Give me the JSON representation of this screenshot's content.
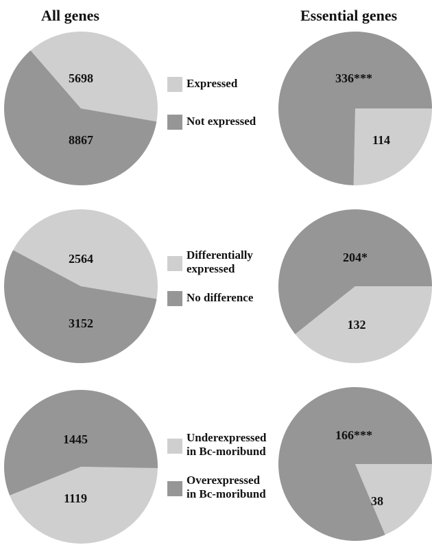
{
  "colors": {
    "light": "#cfcfcf",
    "dark": "#969696"
  },
  "column_titles": {
    "left": "All genes",
    "right": "Essential genes"
  },
  "legends": [
    {
      "items": [
        {
          "lines": [
            "Expressed"
          ],
          "color": "light"
        },
        {
          "lines": [
            "Not expressed"
          ],
          "color": "dark"
        }
      ]
    },
    {
      "items": [
        {
          "lines": [
            "Differentially",
            "expressed"
          ],
          "color": "light"
        },
        {
          "lines": [
            "No difference"
          ],
          "color": "dark"
        }
      ]
    },
    {
      "items": [
        {
          "lines": [
            "Underexpressed",
            "in Bc-moribund"
          ],
          "color": "light"
        },
        {
          "lines": [
            "Overexpressed",
            "in Bc-moribund"
          ],
          "color": "dark"
        }
      ]
    }
  ],
  "chart_data": [
    {
      "type": "pie",
      "row": 1,
      "column": "All genes",
      "slices": [
        {
          "label": "5698",
          "value": 5698,
          "color": "light"
        },
        {
          "label": "8867",
          "value": 8867,
          "color": "dark"
        }
      ]
    },
    {
      "type": "pie",
      "row": 1,
      "column": "Essential genes",
      "slices": [
        {
          "label": "114",
          "value": 114,
          "color": "light"
        },
        {
          "label": "336***",
          "value": 336,
          "color": "dark"
        }
      ]
    },
    {
      "type": "pie",
      "row": 2,
      "column": "All genes",
      "slices": [
        {
          "label": "2564",
          "value": 2564,
          "color": "light"
        },
        {
          "label": "3152",
          "value": 3152,
          "color": "dark"
        }
      ]
    },
    {
      "type": "pie",
      "row": 2,
      "column": "Essential genes",
      "slices": [
        {
          "label": "132",
          "value": 132,
          "color": "light"
        },
        {
          "label": "204*",
          "value": 204,
          "color": "dark"
        }
      ]
    },
    {
      "type": "pie",
      "row": 3,
      "column": "All genes",
      "slices": [
        {
          "label": "1119",
          "value": 1119,
          "color": "light"
        },
        {
          "label": "1445",
          "value": 1445,
          "color": "dark"
        }
      ]
    },
    {
      "type": "pie",
      "row": 3,
      "column": "Essential genes",
      "slices": [
        {
          "label": "38",
          "value": 38,
          "color": "light"
        },
        {
          "label": "166***",
          "value": 166,
          "color": "dark"
        }
      ]
    }
  ]
}
